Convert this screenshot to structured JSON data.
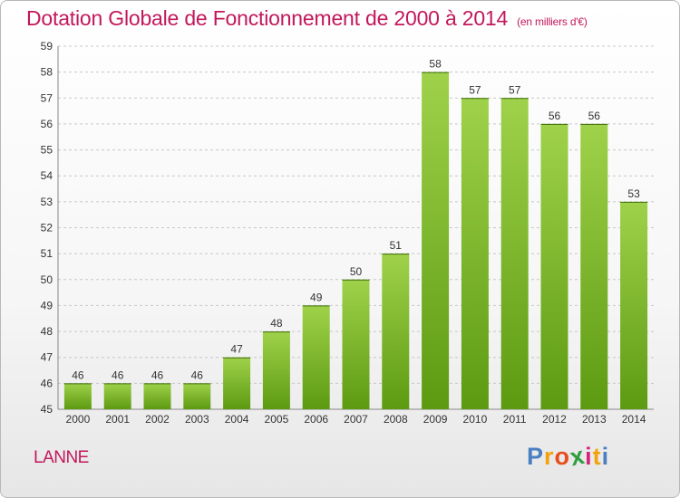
{
  "title": "Dotation Globale de Fonctionnement de 2000 à 2014",
  "unit_note": "(en milliers d'€)",
  "commune": "LANNE",
  "logo": {
    "letters": [
      "P",
      "r",
      "o",
      "x",
      "i",
      "t",
      "i"
    ],
    "colors": [
      "#4a7fc1",
      "#f2a20c",
      "#e84e1b",
      "#2f9e3f",
      "#d6247a",
      "#f2a20c",
      "#4a7fc1"
    ]
  },
  "colors": {
    "bar_top": "#9fd24a",
    "bar_bottom": "#5c9a12",
    "accent": "#c2185b",
    "grid": "#c8c8c8",
    "axis_text": "#333333"
  },
  "chart_data": {
    "type": "bar",
    "categories": [
      "2000",
      "2001",
      "2002",
      "2003",
      "2004",
      "2005",
      "2006",
      "2007",
      "2008",
      "2009",
      "2010",
      "2011",
      "2012",
      "2013",
      "2014"
    ],
    "values": [
      46,
      46,
      46,
      46,
      47,
      48,
      49,
      50,
      51,
      58,
      57,
      57,
      56,
      56,
      53
    ],
    "ylim": [
      45,
      59
    ],
    "yticks": [
      45,
      46,
      47,
      48,
      49,
      50,
      51,
      52,
      53,
      54,
      55,
      56,
      57,
      58,
      59
    ],
    "grid": true,
    "data_labels": true
  }
}
